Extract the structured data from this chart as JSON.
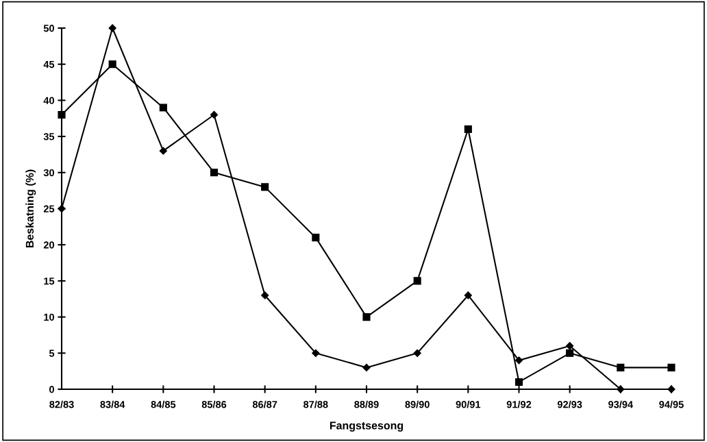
{
  "chart_data": {
    "type": "line",
    "xlabel": "Fangstsesong",
    "ylabel": "Beskatning (%)",
    "categories": [
      "82/83",
      "83/84",
      "84/85",
      "85/86",
      "86/87",
      "87/88",
      "88/89",
      "89/90",
      "90/91",
      "91/92",
      "92/93",
      "93/94",
      "94/95"
    ],
    "series": [
      {
        "color": "#000000",
        "marker": "square",
        "values": [
          38,
          45,
          39,
          30,
          28,
          21,
          10,
          15,
          36,
          1,
          5,
          3,
          3
        ]
      },
      {
        "color": "#000000",
        "marker": "diamond",
        "values": [
          25,
          50,
          33,
          38,
          13,
          5,
          3,
          5,
          13,
          4,
          6,
          0,
          0
        ]
      }
    ],
    "ylim": [
      0,
      50
    ],
    "yticks": [
      0,
      5,
      10,
      15,
      20,
      25,
      30,
      35,
      40,
      45,
      50
    ],
    "grid": false,
    "legend": false,
    "line_style": "solid"
  }
}
